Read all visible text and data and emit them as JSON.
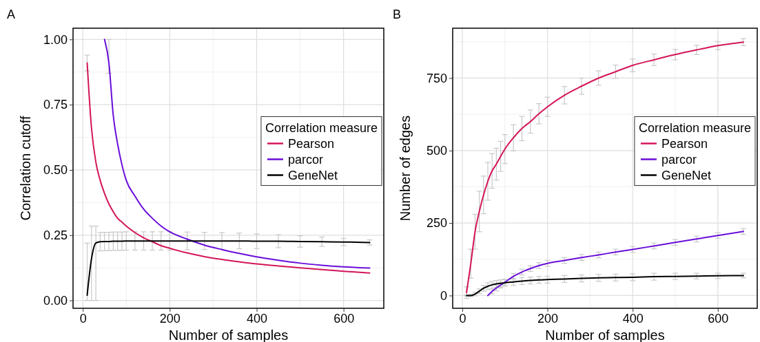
{
  "chart_data": [
    {
      "type": "line",
      "annotations": [
        "A"
      ],
      "xlabel": "Number of samples",
      "ylabel": "Correlation cutoff",
      "legend_title": "Correlation measure",
      "legend": "right",
      "grid": true,
      "x": [
        10,
        20,
        30,
        40,
        50,
        60,
        70,
        80,
        90,
        100,
        120,
        140,
        160,
        180,
        200,
        240,
        280,
        320,
        360,
        400,
        450,
        500,
        550,
        600,
        660
      ],
      "xlim": [
        -22.5,
        692.5
      ],
      "xticks": [
        0,
        200,
        400,
        600
      ],
      "ylim": [
        -0.03,
        1.043
      ],
      "yticks": [
        {
          "value": 0,
          "label": "0.00"
        },
        {
          "value": 0.25,
          "label": "0.25"
        },
        {
          "value": 0.5,
          "label": "0.50"
        },
        {
          "value": 0.75,
          "label": "0.75"
        },
        {
          "value": 1,
          "label": "1.00"
        }
      ],
      "series": [
        {
          "name": "Pearson",
          "color": "#d4145a",
          "values": [
            0.91,
            0.66,
            0.53,
            0.46,
            0.41,
            0.37,
            0.34,
            0.315,
            0.3,
            0.285,
            0.26,
            0.24,
            0.225,
            0.21,
            0.2,
            0.182,
            0.168,
            0.157,
            0.148,
            0.14,
            0.132,
            0.125,
            0.118,
            0.112,
            0.105
          ],
          "errors": [
            [
              0.88,
              0.94
            ],
            null,
            null,
            null,
            null,
            null,
            null,
            null,
            null,
            null,
            null,
            null,
            null,
            null,
            null,
            null,
            null,
            null,
            null,
            null,
            null,
            null,
            null,
            null,
            null
          ]
        },
        {
          "name": "parcor",
          "color": "#6a0dd9",
          "values": [
            null,
            null,
            null,
            null,
            1.0,
            0.91,
            0.71,
            0.6,
            0.52,
            0.46,
            0.4,
            0.35,
            0.315,
            0.285,
            0.263,
            0.235,
            0.212,
            0.195,
            0.18,
            0.167,
            0.154,
            0.143,
            0.135,
            0.129,
            0.124
          ],
          "errors": [
            null,
            null,
            null,
            null,
            null,
            [
              0.87,
              1.0
            ],
            null,
            null,
            null,
            null,
            null,
            null,
            null,
            null,
            null,
            null,
            null,
            null,
            null,
            null,
            null,
            null,
            null,
            null,
            null
          ]
        },
        {
          "name": "GeneNet",
          "color": "#000000",
          "values": [
            0.02,
            0.16,
            0.22,
            0.225,
            0.226,
            0.226,
            0.227,
            0.227,
            0.227,
            0.228,
            0.228,
            0.228,
            0.228,
            0.228,
            0.228,
            0.228,
            0.228,
            0.228,
            0.228,
            0.227,
            0.227,
            0.226,
            0.225,
            0.224,
            0.222
          ],
          "errors": [
            [
              0,
              0.22
            ],
            [
              0,
              0.285
            ],
            [
              0,
              0.285
            ],
            [
              0.19,
              0.26
            ],
            0.035,
            0.035,
            0.035,
            0.035,
            0.035,
            0.035,
            0.035,
            0.035,
            0.035,
            0.035,
            0.035,
            0.034,
            0.033,
            0.032,
            0.03,
            0.028,
            0.025,
            0.022,
            0.018,
            0.014,
            0.01
          ]
        }
      ]
    },
    {
      "type": "line",
      "annotations": [
        "B"
      ],
      "xlabel": "Number of samples",
      "ylabel": "Number of edges",
      "legend_title": "Correlation measure",
      "legend": "right",
      "grid": true,
      "x": [
        10,
        20,
        30,
        40,
        50,
        60,
        70,
        80,
        90,
        100,
        120,
        140,
        160,
        180,
        200,
        240,
        280,
        320,
        360,
        400,
        450,
        500,
        550,
        600,
        660
      ],
      "xlim": [
        -22.5,
        692.5
      ],
      "xticks": [
        0,
        200,
        400,
        600
      ],
      "ylim": [
        -44,
        922
      ],
      "yticks": [
        0,
        250,
        500,
        750
      ],
      "series": [
        {
          "name": "Pearson",
          "color": "#d4145a",
          "values": [
            10,
            110,
            220,
            290,
            347,
            394,
            430,
            453,
            480,
            505,
            544,
            576,
            600,
            627,
            651,
            691,
            722,
            750,
            772,
            794,
            813,
            831,
            847,
            862,
            874
          ],
          "errors": [
            20,
            50,
            60,
            70,
            65,
            65,
            60,
            55,
            52,
            50,
            45,
            42,
            40,
            35,
            33,
            30,
            28,
            25,
            23,
            22,
            20,
            18,
            16,
            14,
            12
          ]
        },
        {
          "name": "parcor",
          "color": "#6a0dd9",
          "values": [
            null,
            null,
            null,
            null,
            null,
            0,
            14,
            26,
            36,
            46,
            66,
            81,
            93,
            103,
            111,
            121,
            131,
            140,
            150,
            159,
            171,
            183,
            195,
            207,
            221
          ],
          "errors": [
            null,
            null,
            null,
            null,
            null,
            null,
            8,
            10,
            10,
            10,
            10,
            10,
            10,
            10,
            10,
            10,
            10,
            10,
            10,
            10,
            10,
            10,
            10,
            10,
            10
          ]
        },
        {
          "name": "GeneNet",
          "color": "#000000",
          "values": [
            0,
            0,
            5,
            15,
            25,
            32,
            37,
            40,
            42,
            44,
            47,
            50,
            52,
            54,
            55,
            57,
            59,
            61,
            62,
            63,
            65,
            66,
            67,
            68,
            69
          ],
          "errors": [
            2,
            4,
            6,
            8,
            10,
            12,
            12,
            12,
            12,
            12,
            12,
            12,
            12,
            12,
            12,
            12,
            12,
            12,
            12,
            12,
            12,
            11,
            10,
            9,
            8
          ]
        }
      ]
    }
  ]
}
